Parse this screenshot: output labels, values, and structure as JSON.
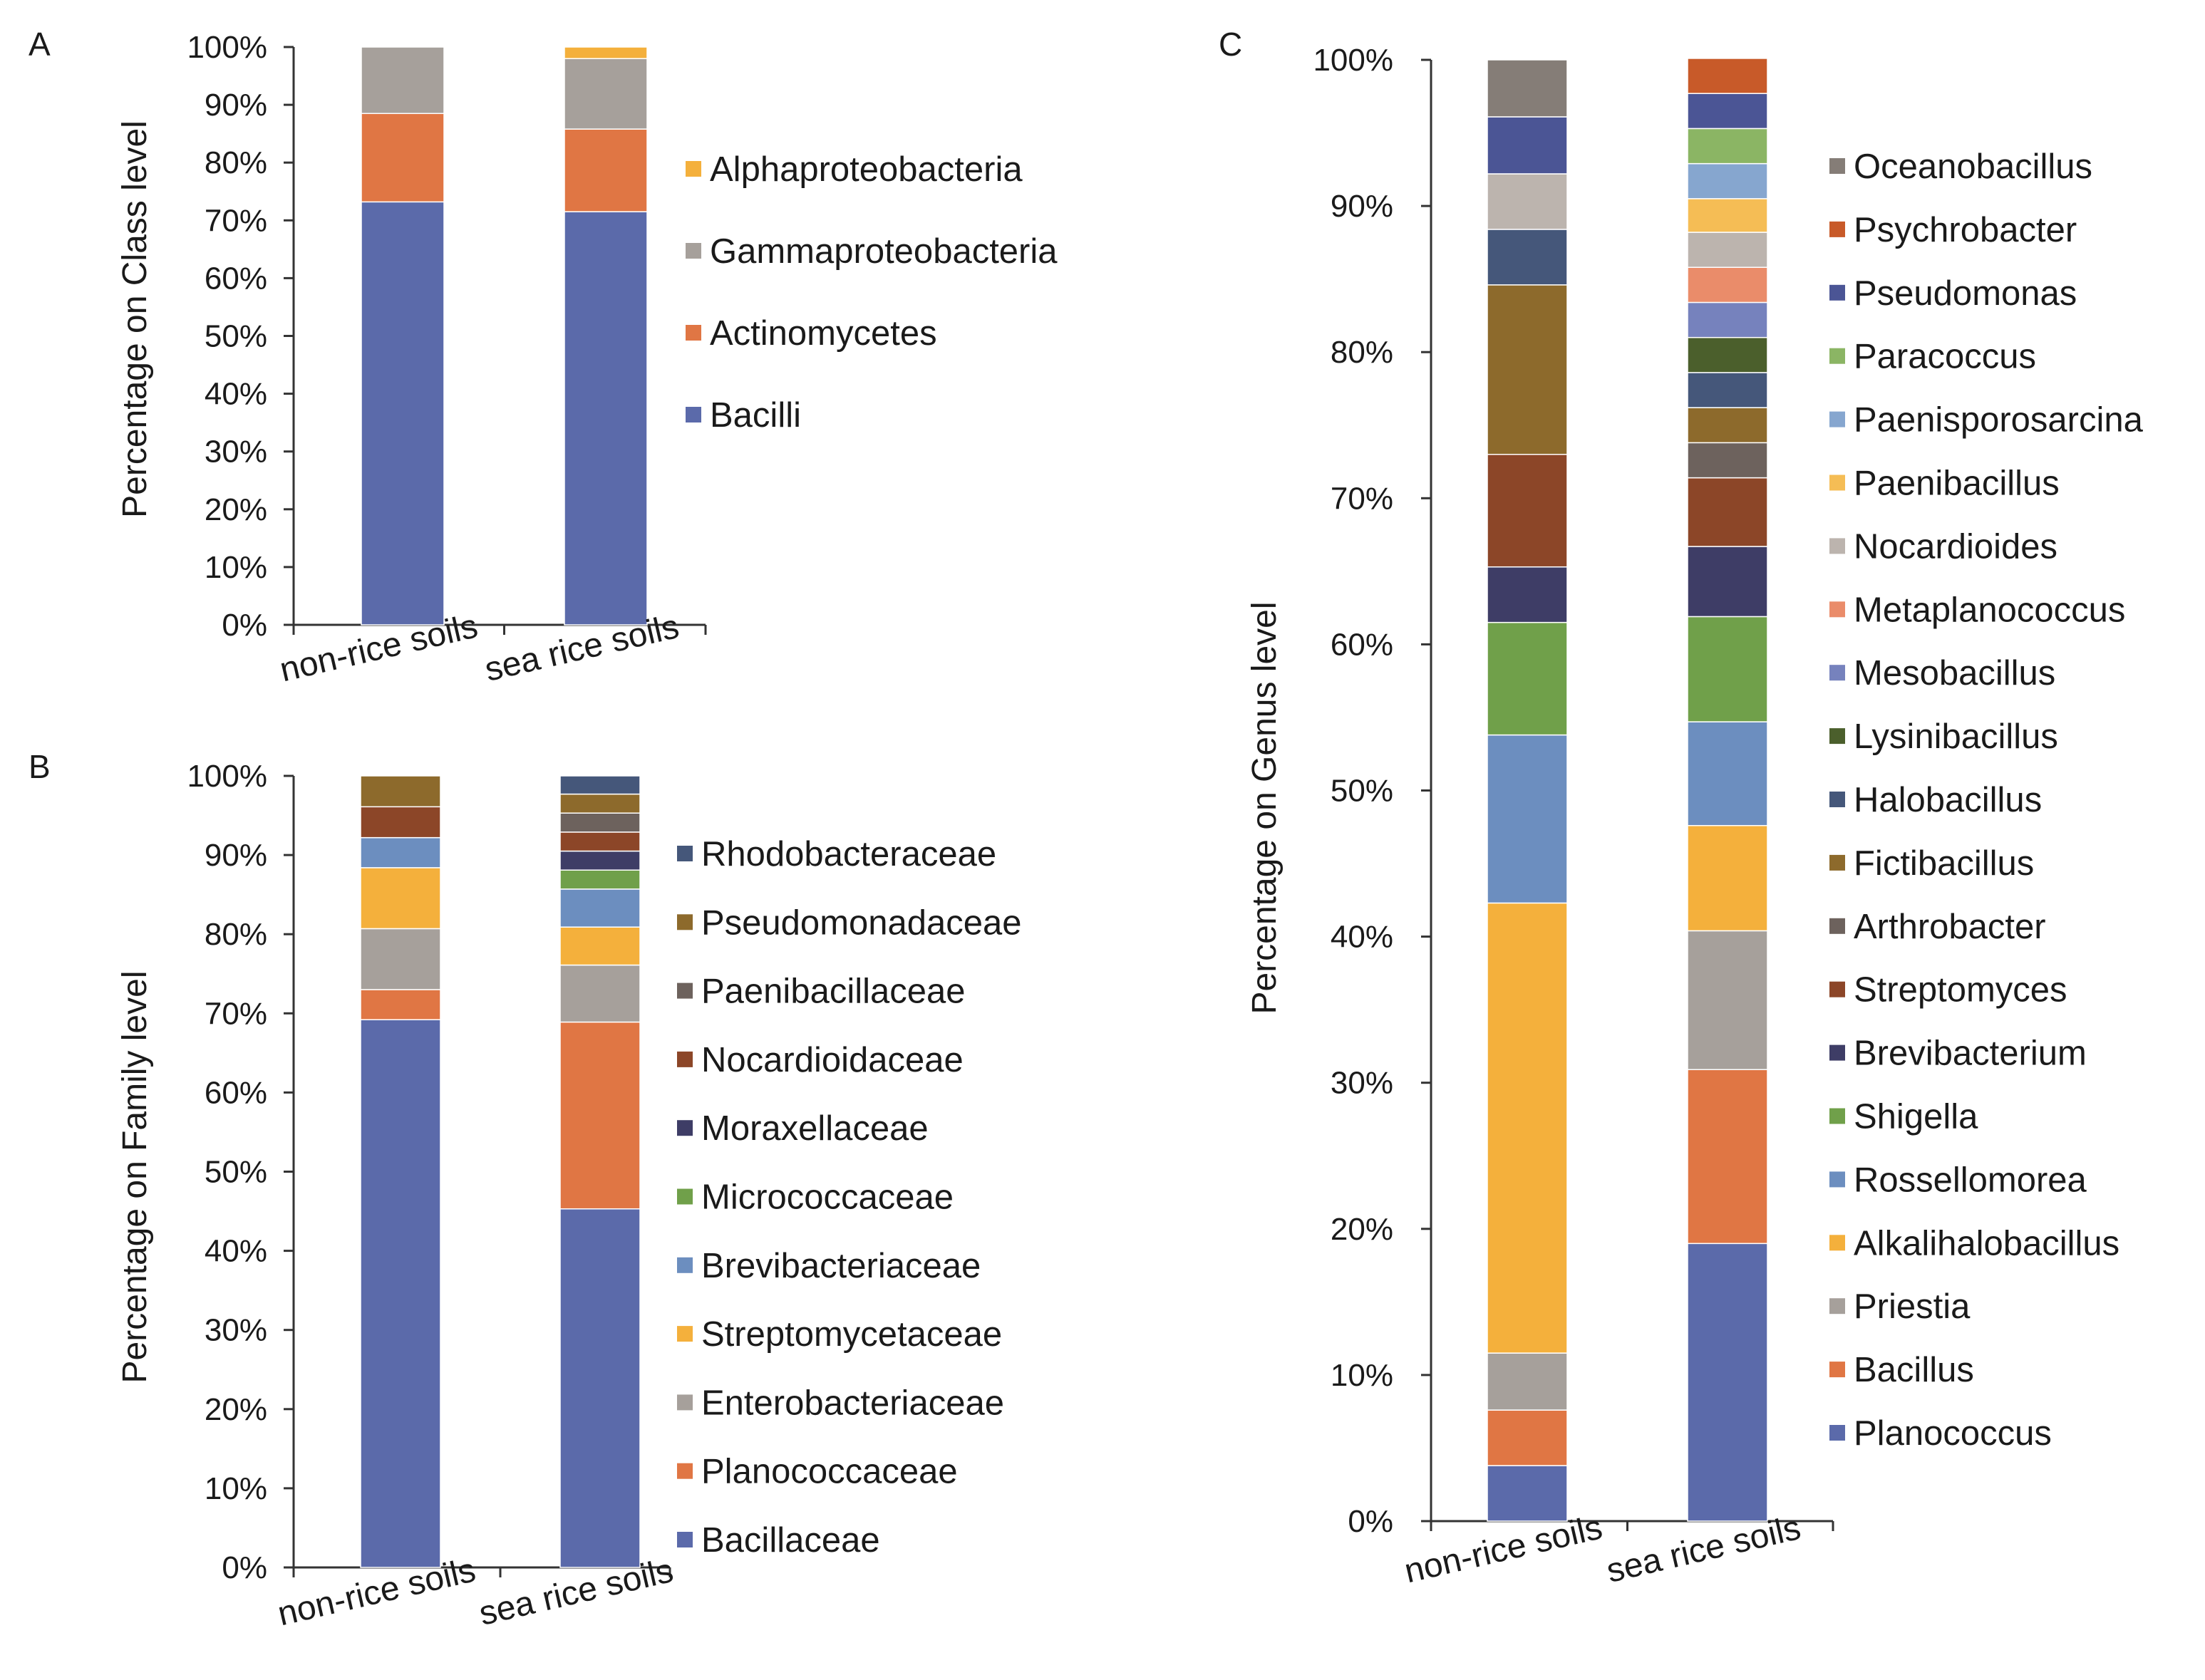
{
  "figure": {
    "panels": [
      "A",
      "B",
      "C"
    ]
  },
  "chart_data": [
    {
      "panel": "A",
      "type": "bar",
      "stacked": true,
      "title": "",
      "xlabel": "",
      "ylabel": "Percentage on Class level",
      "ylim": [
        0,
        100
      ],
      "yticks": [
        "0%",
        "10%",
        "20%",
        "30%",
        "40%",
        "50%",
        "60%",
        "70%",
        "80%",
        "90%",
        "100%"
      ],
      "categories": [
        "non-rice soils",
        "sea rice soils"
      ],
      "series": [
        {
          "name": "Bacilli",
          "color": "#5b6aaa",
          "values": [
            73.2,
            71.5
          ]
        },
        {
          "name": "Actinomycetes",
          "color": "#e07644",
          "values": [
            15.3,
            14.3
          ]
        },
        {
          "name": "Gammaproteobacteria",
          "color": "#a6a09b",
          "values": [
            11.5,
            12.2
          ]
        },
        {
          "name": "Alphaproteobacteria",
          "color": "#f4b03c",
          "values": [
            0,
            2.0
          ]
        }
      ],
      "legend_order": [
        "Alphaproteobacteria",
        "Gammaproteobacteria",
        "Actinomycetes",
        "Bacilli"
      ]
    },
    {
      "panel": "B",
      "type": "bar",
      "stacked": true,
      "title": "",
      "xlabel": "",
      "ylabel": "Percentage on Family level",
      "ylim": [
        0,
        100
      ],
      "yticks": [
        "0%",
        "10%",
        "20%",
        "30%",
        "40%",
        "50%",
        "60%",
        "70%",
        "80%",
        "90%",
        "100%"
      ],
      "categories": [
        "non-rice soils",
        "sea rice soils"
      ],
      "series": [
        {
          "name": "Bacillaceae",
          "color": "#5b6aaa",
          "values": [
            69.2,
            45.3
          ]
        },
        {
          "name": "Planococcaceae",
          "color": "#e07644",
          "values": [
            3.8,
            23.6
          ]
        },
        {
          "name": "Enterobacteriaceae",
          "color": "#a6a09b",
          "values": [
            7.7,
            7.2
          ]
        },
        {
          "name": "Streptomycetaceae",
          "color": "#f4b03c",
          "values": [
            7.7,
            4.8
          ]
        },
        {
          "name": "Brevibacteriaceae",
          "color": "#6c8ebf",
          "values": [
            3.8,
            4.8
          ]
        },
        {
          "name": "Micrococcaceae",
          "color": "#70a04a",
          "values": [
            0,
            2.4
          ]
        },
        {
          "name": "Moraxellaceae",
          "color": "#3e3d66",
          "values": [
            0,
            2.4
          ]
        },
        {
          "name": "Nocardioidaceae",
          "color": "#8c4628",
          "values": [
            3.9,
            2.4
          ]
        },
        {
          "name": "Paenibacillaceae",
          "color": "#6d625d",
          "values": [
            0,
            2.4
          ]
        },
        {
          "name": "Pseudomonadaceae",
          "color": "#8d6a2c",
          "values": [
            3.9,
            2.4
          ]
        },
        {
          "name": "Rhodobacteraceae",
          "color": "#45577a",
          "values": [
            0,
            2.3
          ]
        }
      ],
      "legend_order": [
        "Rhodobacteraceae",
        "Pseudomonadaceae",
        "Paenibacillaceae",
        "Nocardioidaceae",
        "Moraxellaceae",
        "Micrococcaceae",
        "Brevibacteriaceae",
        "Streptomycetaceae",
        "Enterobacteriaceae",
        "Planococcaceae",
        "Bacillaceae"
      ]
    },
    {
      "panel": "C",
      "type": "bar",
      "stacked": true,
      "title": "",
      "xlabel": "",
      "ylabel": "Percentage on Genus level",
      "ylim": [
        0,
        100
      ],
      "yticks": [
        "0%",
        "10%",
        "20%",
        "30%",
        "40%",
        "50%",
        "60%",
        "70%",
        "80%",
        "90%",
        "100%"
      ],
      "categories": [
        "non-rice soils",
        "sea rice soils"
      ],
      "series": [
        {
          "name": "Planococcus",
          "color": "#5b6aaa",
          "values": [
            3.8,
            19.0
          ]
        },
        {
          "name": "Bacillus",
          "color": "#e07644",
          "values": [
            3.8,
            11.9
          ]
        },
        {
          "name": "Priestia",
          "color": "#a6a09b",
          "values": [
            3.9,
            9.5
          ]
        },
        {
          "name": "Alkalihalobacillus",
          "color": "#f4b03c",
          "values": [
            30.8,
            7.2
          ]
        },
        {
          "name": "Rossellomorea",
          "color": "#6c8ebf",
          "values": [
            11.5,
            7.1
          ]
        },
        {
          "name": "Shigella",
          "color": "#70a04a",
          "values": [
            7.7,
            7.2
          ]
        },
        {
          "name": "Brevibacterium",
          "color": "#3e3d66",
          "values": [
            3.8,
            4.8
          ]
        },
        {
          "name": "Streptomyces",
          "color": "#8c4628",
          "values": [
            7.7,
            4.7
          ]
        },
        {
          "name": "Arthrobacter",
          "color": "#6d625d",
          "values": [
            0,
            2.4
          ]
        },
        {
          "name": "Fictibacillus",
          "color": "#8d6a2c",
          "values": [
            11.6,
            2.4
          ]
        },
        {
          "name": "Halobacillus",
          "color": "#45577a",
          "values": [
            3.8,
            2.4
          ]
        },
        {
          "name": "Lysinibacillus",
          "color": "#4b5f2c",
          "values": [
            0,
            2.4
          ]
        },
        {
          "name": "Mesobacillus",
          "color": "#7682bd",
          "values": [
            0,
            2.4
          ]
        },
        {
          "name": "Metaplanococcus",
          "color": "#ea8c6a",
          "values": [
            0,
            2.4
          ]
        },
        {
          "name": "Nocardioides",
          "color": "#bcb4ae",
          "values": [
            3.8,
            2.4
          ]
        },
        {
          "name": "Paenibacillus",
          "color": "#f5bd55",
          "values": [
            0,
            2.3
          ]
        },
        {
          "name": "Paenisporosarcina",
          "color": "#86a6cf",
          "values": [
            0,
            2.4
          ]
        },
        {
          "name": "Paracoccus",
          "color": "#8bb564",
          "values": [
            0,
            2.4
          ]
        },
        {
          "name": "Pseudomonas",
          "color": "#4b5595",
          "values": [
            3.9,
            2.4
          ]
        },
        {
          "name": "Psychrobacter",
          "color": "#c85a29",
          "values": [
            0,
            2.4
          ]
        },
        {
          "name": "Oceanobacillus",
          "color": "#857d77",
          "values": [
            3.9,
            0
          ]
        }
      ],
      "legend_order": [
        "Oceanobacillus",
        "Psychrobacter",
        "Pseudomonas",
        "Paracoccus",
        "Paenisporosarcina",
        "Paenibacillus",
        "Nocardioides",
        "Metaplanococcus",
        "Mesobacillus",
        "Lysinibacillus",
        "Halobacillus",
        "Fictibacillus",
        "Arthrobacter",
        "Streptomyces",
        "Brevibacterium",
        "Shigella",
        "Rossellomorea",
        "Alkalihalobacillus",
        "Priestia",
        "Bacillus",
        "Planococcus"
      ]
    }
  ]
}
